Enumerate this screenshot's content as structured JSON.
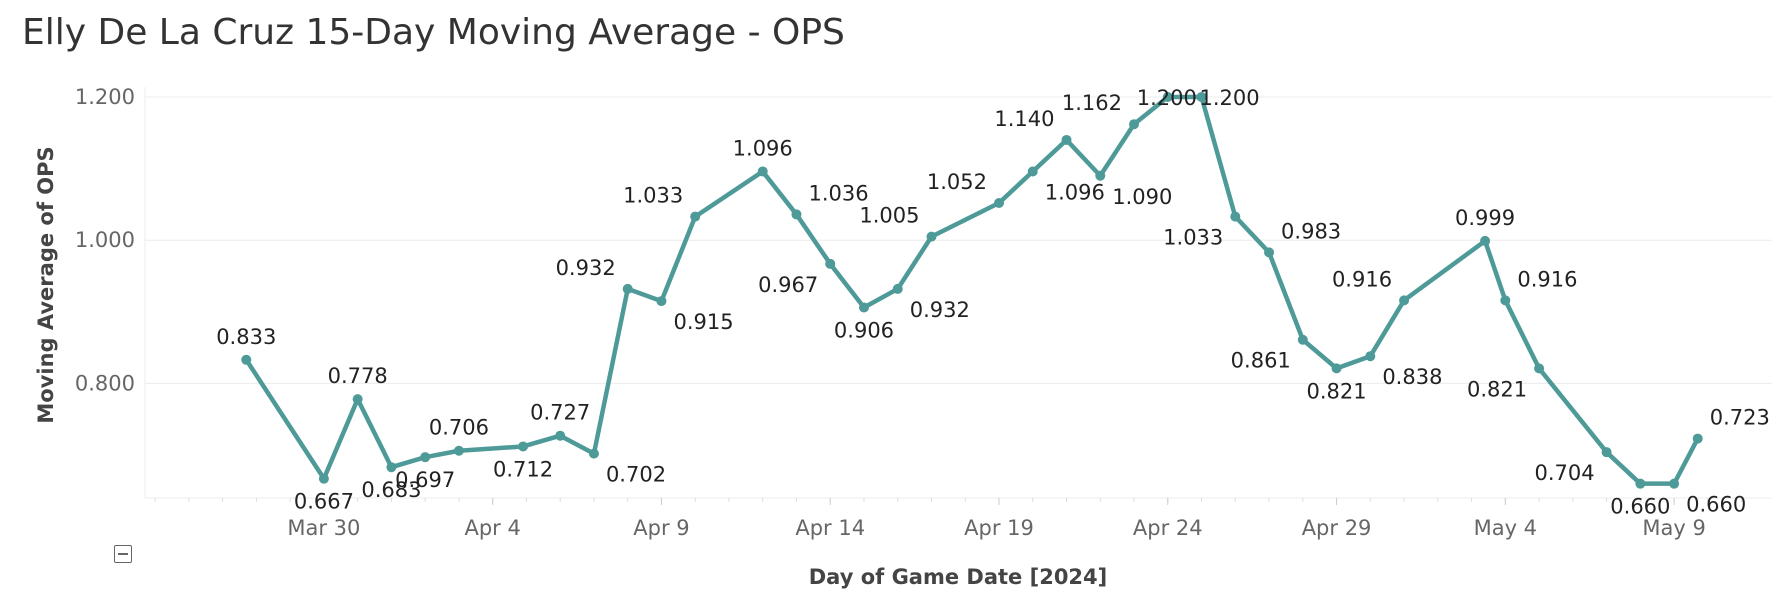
{
  "title": "Elly De La Cruz 15-Day Moving Average - OPS",
  "colors": {
    "series": "#4e9a98",
    "grid": "#ececec",
    "tick": "#666666",
    "label": "#222222"
  },
  "icons": {
    "collapse": "collapse-icon"
  },
  "chart_data": {
    "type": "line",
    "title": "Elly De La Cruz 15-Day Moving Average - OPS",
    "xlabel": "Day of Game Date [2024]",
    "ylabel": "Moving Average of OPS",
    "ylim": [
      0.64,
      1.2
    ],
    "xlim": [
      -3.3,
      44.9
    ],
    "y_ticks": [
      {
        "value": 0.8,
        "label": "0.800"
      },
      {
        "value": 1.0,
        "label": "1.000"
      },
      {
        "value": 1.2,
        "label": "1.200"
      }
    ],
    "x_ticks": [
      {
        "day": 2,
        "label": "Mar 30"
      },
      {
        "day": 7,
        "label": "Apr 4"
      },
      {
        "day": 12,
        "label": "Apr 9"
      },
      {
        "day": 17,
        "label": "Apr 14"
      },
      {
        "day": 22,
        "label": "Apr 19"
      },
      {
        "day": 27,
        "label": "Apr 24"
      },
      {
        "day": 32,
        "label": "Apr 29"
      },
      {
        "day": 37,
        "label": "May 4"
      },
      {
        "day": 42,
        "label": "May 9"
      }
    ],
    "points": [
      {
        "day": -0.3,
        "value": 0.833,
        "label": "0.833",
        "pos": "above"
      },
      {
        "day": 2,
        "value": 0.667,
        "label": "0.667",
        "pos": "below"
      },
      {
        "day": 3,
        "value": 0.778,
        "label": "0.778",
        "pos": "above"
      },
      {
        "day": 4,
        "value": 0.683,
        "label": "0.683",
        "pos": "below"
      },
      {
        "day": 5,
        "value": 0.697,
        "label": "0.697",
        "pos": "below"
      },
      {
        "day": 6,
        "value": 0.706,
        "label": "0.706",
        "pos": "above"
      },
      {
        "day": 7.9,
        "value": 0.712,
        "label": "0.712",
        "pos": "below"
      },
      {
        "day": 9,
        "value": 0.727,
        "label": "0.727",
        "pos": "above"
      },
      {
        "day": 10,
        "value": 0.702,
        "label": "0.702",
        "pos": "belowright"
      },
      {
        "day": 11,
        "value": 0.932,
        "label": "0.932",
        "pos": "aboveleft"
      },
      {
        "day": 12,
        "value": 0.915,
        "label": "0.915",
        "pos": "belowright"
      },
      {
        "day": 13,
        "value": 1.033,
        "label": "1.033",
        "pos": "aboveleft"
      },
      {
        "day": 15,
        "value": 1.096,
        "label": "1.096",
        "pos": "above"
      },
      {
        "day": 16,
        "value": 1.036,
        "label": "1.036",
        "pos": "aboveright"
      },
      {
        "day": 17,
        "value": 0.967,
        "label": "0.967",
        "pos": "belowleft"
      },
      {
        "day": 18,
        "value": 0.906,
        "label": "0.906",
        "pos": "below"
      },
      {
        "day": 19,
        "value": 0.932,
        "label": "0.932",
        "pos": "belowright"
      },
      {
        "day": 20,
        "value": 1.005,
        "label": "1.005",
        "pos": "aboveleft"
      },
      {
        "day": 22,
        "value": 1.052,
        "label": "1.052",
        "pos": "aboveleft"
      },
      {
        "day": 23,
        "value": 1.096,
        "label": "1.096",
        "pos": "belowright"
      },
      {
        "day": 24,
        "value": 1.14,
        "label": "1.140",
        "pos": "aboveleft"
      },
      {
        "day": 25,
        "value": 1.09,
        "label": "1.090",
        "pos": "belowright"
      },
      {
        "day": 26,
        "value": 1.162,
        "label": "1.162",
        "pos": "aboveleft"
      },
      {
        "day": 27,
        "value": 1.2,
        "label": "1.200",
        "pos": "right"
      },
      {
        "day": 28,
        "value": 1.2,
        "label": "1.200",
        "pos": "right"
      },
      {
        "day": 29,
        "value": 1.033,
        "label": "1.033",
        "pos": "belowleft"
      },
      {
        "day": 30,
        "value": 0.983,
        "label": "0.983",
        "pos": "aboveright"
      },
      {
        "day": 31,
        "value": 0.861,
        "label": "0.861",
        "pos": "belowleft"
      },
      {
        "day": 32,
        "value": 0.821,
        "label": "0.821",
        "pos": "below"
      },
      {
        "day": 33,
        "value": 0.838,
        "label": "0.838",
        "pos": "belowright"
      },
      {
        "day": 34,
        "value": 0.916,
        "label": "0.916",
        "pos": "aboveleft"
      },
      {
        "day": 36.4,
        "value": 0.999,
        "label": "0.999",
        "pos": "above"
      },
      {
        "day": 37,
        "value": 0.916,
        "label": "0.916",
        "pos": "aboveright"
      },
      {
        "day": 38,
        "value": 0.821,
        "label": "0.821",
        "pos": "belowleft"
      },
      {
        "day": 40,
        "value": 0.704,
        "label": "0.704",
        "pos": "belowleft"
      },
      {
        "day": 41,
        "value": 0.66,
        "label": "0.660",
        "pos": "below"
      },
      {
        "day": 42,
        "value": 0.66,
        "label": "0.660",
        "pos": "belowright"
      },
      {
        "day": 42.7,
        "value": 0.723,
        "label": "0.723",
        "pos": "aboveright"
      }
    ]
  }
}
